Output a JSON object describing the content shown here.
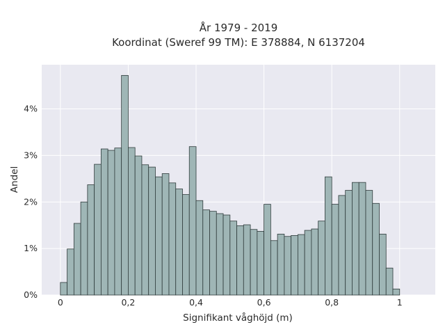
{
  "chart_data": {
    "type": "bar",
    "title_lines": [
      "År 1979 - 2019",
      "Koordinat (Sweref 99 TM): E 378884, N 6137204"
    ],
    "xlabel": "Signifikant våghöjd (m)",
    "ylabel": "Andel",
    "x_ticks": [
      {
        "value": 0,
        "label": "0"
      },
      {
        "value": 0.2,
        "label": "0,2"
      },
      {
        "value": 0.4,
        "label": "0,4"
      },
      {
        "value": 0.6,
        "label": "0,6"
      },
      {
        "value": 0.8,
        "label": "0,8"
      },
      {
        "value": 1,
        "label": "1"
      }
    ],
    "y_ticks": [
      {
        "value": 0,
        "label": "0%"
      },
      {
        "value": 1,
        "label": "1%"
      },
      {
        "value": 2,
        "label": "2%"
      },
      {
        "value": 3,
        "label": "3%"
      },
      {
        "value": 4,
        "label": "4%"
      }
    ],
    "xlim": [
      -0.055,
      1.105
    ],
    "ylim": [
      0,
      4.95
    ],
    "bin_width": 0.02,
    "bins_start": 0,
    "values": [
      0.27,
      0.99,
      1.54,
      2.0,
      2.37,
      2.81,
      3.14,
      3.11,
      3.16,
      4.72,
      3.17,
      2.99,
      2.8,
      2.75,
      2.54,
      2.61,
      2.41,
      2.28,
      2.16,
      3.19,
      2.03,
      1.83,
      1.8,
      1.75,
      1.72,
      1.59,
      1.49,
      1.51,
      1.41,
      1.37,
      1.95,
      1.17,
      1.31,
      1.26,
      1.28,
      1.3,
      1.39,
      1.42,
      1.59,
      2.54,
      1.95,
      2.14,
      2.25,
      2.42,
      2.42,
      2.25,
      1.97,
      1.31,
      0.58,
      0.13
    ],
    "grid": true,
    "colors": {
      "plot_bg": "#e9e9f1",
      "bar_fill": "#9fb6b6",
      "bar_edge": "#2f3b3b",
      "grid": "#ffffff",
      "text": "#2a2a2a"
    }
  }
}
